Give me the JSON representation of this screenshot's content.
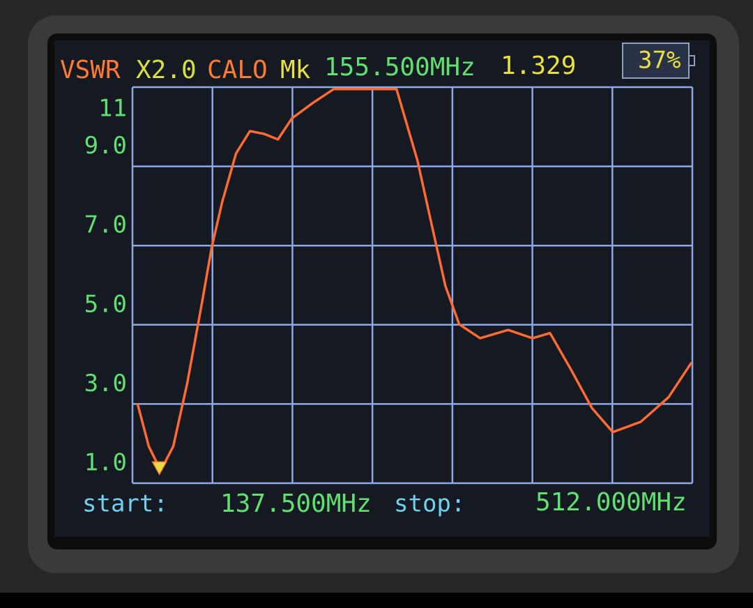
{
  "chart_data": {
    "type": "line",
    "title": "VSWR",
    "mode": "X2.0",
    "calibration": "CALO",
    "marker": {
      "name": "Mk",
      "x": 155.5,
      "x_label": "155.500MHz",
      "value": 1.329
    },
    "battery": "37%",
    "x": [
      140.8,
      148.4,
      156.4,
      164.8,
      174.1,
      183.5,
      190.5,
      197.5,
      206.8,
      216.1,
      225.5,
      234.8,
      244.1,
      258.1,
      272.1,
      314.1,
      328.1,
      337.4,
      346.8,
      356.1,
      370.1,
      388.8,
      405.1,
      416.8,
      430.8,
      444.8,
      458.8,
      477.5,
      496.1,
      511.5
    ],
    "series": [
      {
        "name": "VSWR",
        "color": "#ff6a30",
        "values": [
          3.02,
          1.93,
          1.32,
          1.93,
          3.52,
          5.45,
          6.95,
          8.1,
          9.33,
          9.89,
          9.82,
          9.68,
          10.21,
          10.6,
          10.95,
          10.95,
          9.15,
          7.57,
          5.98,
          5.01,
          4.66,
          4.87,
          4.66,
          4.79,
          3.87,
          2.9,
          2.29,
          2.55,
          3.17,
          4.05
        ]
      }
    ],
    "xlim": [
      137.5,
      512
    ],
    "xlim_labels": [
      "137.500MHz",
      "512.000MHz"
    ],
    "start_label": "start:",
    "stop_label": "stop:",
    "ylim": [
      1,
      11
    ],
    "yticks": [
      {
        "value": 1,
        "label": "1.0"
      },
      {
        "value": 3,
        "label": "3.0"
      },
      {
        "value": 5,
        "label": "5.0"
      },
      {
        "value": 7,
        "label": "7.0"
      },
      {
        "value": 9,
        "label": "9.0"
      },
      11
    ],
    "grid": true
  }
}
